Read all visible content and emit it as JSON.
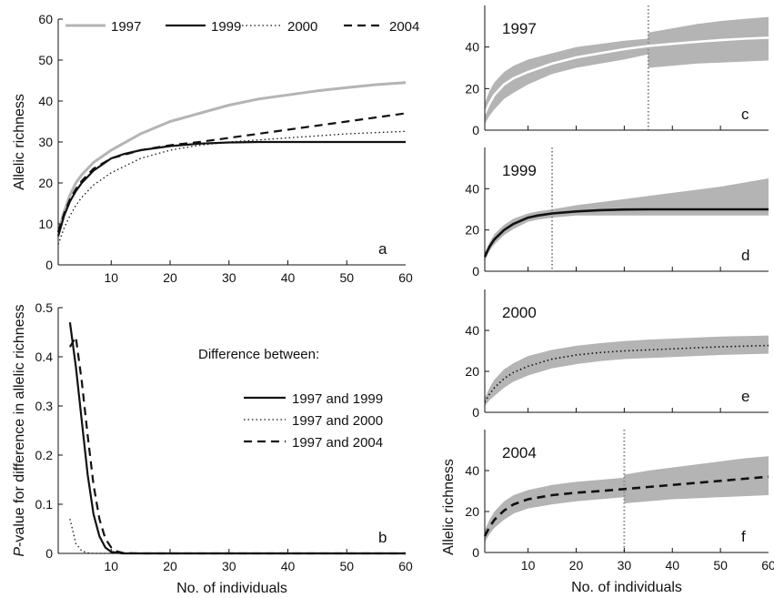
{
  "chart_data": [
    {
      "panel": "a",
      "type": "line",
      "ylabel": "Allelic richness",
      "xlim": [
        1,
        60
      ],
      "ylim": [
        0,
        60
      ],
      "xticks": [
        "10",
        "20",
        "30",
        "40",
        "50",
        "60"
      ],
      "yticks": [
        "0",
        "10",
        "20",
        "30",
        "40",
        "50",
        "60"
      ],
      "legend": {
        "placement": "top",
        "entries": [
          "1997",
          "1999",
          "2000",
          "2004"
        ]
      },
      "series": [
        {
          "name": "1997",
          "style": "solid-gray",
          "color": "#b4b4b4",
          "x": [
            1,
            2,
            3,
            4,
            5,
            7,
            10,
            15,
            20,
            25,
            30,
            35,
            40,
            45,
            50,
            55,
            60
          ],
          "y": [
            8.0,
            13.0,
            17.0,
            20.0,
            22.0,
            25.0,
            28.0,
            32.0,
            35.0,
            37.0,
            39.0,
            40.5,
            41.5,
            42.5,
            43.3,
            44.0,
            44.5
          ]
        },
        {
          "name": "1999",
          "style": "solid-black",
          "color": "#111111",
          "x": [
            1,
            2,
            3,
            4,
            5,
            7,
            10,
            12,
            15,
            20,
            25,
            30,
            35,
            40,
            45,
            50,
            55,
            60
          ],
          "y": [
            7.0,
            12.0,
            15.5,
            18.0,
            20.0,
            23.0,
            26.0,
            27.0,
            28.0,
            29.0,
            29.6,
            29.9,
            30.0,
            30.0,
            30.0,
            30.0,
            30.0,
            30.0
          ]
        },
        {
          "name": "2000",
          "style": "dotted",
          "color": "#111111",
          "x": [
            1,
            2,
            3,
            4,
            5,
            7,
            10,
            15,
            20,
            25,
            30,
            35,
            40,
            45,
            50,
            55,
            60
          ],
          "y": [
            5.0,
            9.0,
            12.0,
            14.5,
            16.5,
            19.5,
            22.5,
            26.0,
            28.0,
            29.2,
            30.0,
            30.5,
            31.0,
            31.5,
            32.0,
            32.3,
            32.6
          ]
        },
        {
          "name": "2004",
          "style": "dashed",
          "color": "#111111",
          "x": [
            1,
            2,
            3,
            4,
            5,
            7,
            10,
            15,
            20,
            25,
            30,
            35,
            40,
            45,
            50,
            55,
            60
          ],
          "y": [
            8.0,
            12.5,
            16.0,
            18.5,
            20.5,
            23.5,
            26.0,
            28.0,
            29.2,
            30.0,
            31.0,
            32.0,
            33.0,
            34.0,
            35.0,
            36.0,
            37.0
          ]
        }
      ]
    },
    {
      "panel": "b",
      "type": "line",
      "xlabel": "No. of individuals",
      "ylabel": "P-value for difference in allelic richness",
      "xlim": [
        1,
        60
      ],
      "ylim": [
        0,
        0.5
      ],
      "xticks": [
        "10",
        "20",
        "30",
        "40",
        "50",
        "60"
      ],
      "yticks": [
        "0",
        "0.1",
        "0.2",
        "0.3",
        "0.4",
        "0.5"
      ],
      "legend_title": "Difference between:",
      "series": [
        {
          "name": "1997 and 1999",
          "style": "solid-black",
          "x": [
            3,
            4,
            5,
            6,
            7,
            8,
            9,
            10,
            12,
            15,
            20,
            60
          ],
          "y": [
            0.47,
            0.38,
            0.27,
            0.16,
            0.08,
            0.035,
            0.012,
            0.003,
            0.0,
            0.0,
            0.0,
            0.0
          ]
        },
        {
          "name": "1997 and 2000",
          "style": "dotted",
          "x": [
            3,
            4,
            5,
            6,
            7,
            8,
            10,
            60
          ],
          "y": [
            0.07,
            0.02,
            0.005,
            0.001,
            0.0,
            0.0,
            0.0,
            0.0
          ]
        },
        {
          "name": "1997 and 2004",
          "style": "dashed",
          "x": [
            3,
            4,
            5,
            6,
            7,
            8,
            9,
            10,
            11,
            12,
            15,
            60
          ],
          "y": [
            0.42,
            0.44,
            0.35,
            0.24,
            0.14,
            0.07,
            0.03,
            0.012,
            0.004,
            0.001,
            0.0,
            0.0
          ]
        }
      ]
    },
    {
      "panel": "c",
      "type": "area",
      "inset_label": "1997",
      "xlim": [
        1,
        60
      ],
      "ylim": [
        0,
        60
      ],
      "xticks": [],
      "yticks": [
        "0",
        "20",
        "40"
      ],
      "vline_x": 35,
      "line": {
        "x": [
          1,
          2,
          3,
          5,
          7,
          10,
          15,
          20,
          25,
          30,
          35,
          40,
          45,
          50,
          55,
          60
        ],
        "y": [
          8,
          13,
          17,
          22,
          25,
          28,
          32,
          35,
          37,
          39,
          40.5,
          41.5,
          42.5,
          43.3,
          44,
          44.5
        ]
      },
      "band_upper": {
        "x": [
          1,
          2,
          3,
          5,
          7,
          10,
          15,
          20,
          25,
          30,
          34.9,
          35,
          40,
          45,
          50,
          55,
          60
        ],
        "y": [
          13,
          19,
          23,
          28,
          31,
          34,
          37,
          40,
          41.5,
          43,
          44,
          47,
          49,
          51,
          52.5,
          53.5,
          54.5
        ]
      },
      "band_lower": {
        "x": [
          1,
          2,
          3,
          5,
          7,
          10,
          15,
          20,
          25,
          30,
          34.9,
          35,
          40,
          45,
          50,
          55,
          60
        ],
        "y": [
          3,
          7,
          10,
          15,
          18,
          22,
          27,
          30,
          32,
          34,
          36.5,
          30,
          31,
          32,
          32.5,
          33,
          33.5
        ]
      }
    },
    {
      "panel": "d",
      "type": "area",
      "inset_label": "1999",
      "xlim": [
        1,
        60
      ],
      "ylim": [
        0,
        60
      ],
      "xticks": [],
      "yticks": [
        "0",
        "20",
        "40"
      ],
      "vline_x": 15,
      "line": {
        "x": [
          1,
          2,
          3,
          5,
          7,
          10,
          12,
          15,
          20,
          25,
          30,
          35,
          40,
          45,
          50,
          55,
          60
        ],
        "y": [
          7,
          12,
          15.5,
          20,
          23,
          26,
          27,
          28,
          29,
          29.6,
          29.9,
          30,
          30,
          30,
          30,
          30,
          30
        ]
      },
      "band_upper": {
        "x": [
          1,
          2,
          3,
          5,
          7,
          10,
          12,
          15,
          20,
          25,
          30,
          35,
          40,
          45,
          50,
          55,
          60
        ],
        "y": [
          9,
          14,
          18,
          22.5,
          25.5,
          28,
          29,
          30,
          32,
          33.5,
          35,
          36.5,
          38,
          39.5,
          41,
          43,
          45
        ]
      },
      "band_lower": {
        "x": [
          1,
          2,
          3,
          5,
          7,
          10,
          12,
          15,
          20,
          25,
          30,
          35,
          40,
          45,
          50,
          55,
          60
        ],
        "y": [
          5,
          10,
          13,
          17.5,
          20.5,
          24,
          25,
          26,
          27,
          27,
          27,
          27,
          27,
          27,
          27,
          27,
          27
        ]
      }
    },
    {
      "panel": "e",
      "type": "area",
      "inset_label": "2000",
      "xlim": [
        1,
        60
      ],
      "ylim": [
        0,
        60
      ],
      "xticks": [],
      "yticks": [
        "0",
        "20",
        "40"
      ],
      "line": {
        "x": [
          1,
          2,
          3,
          5,
          7,
          10,
          15,
          20,
          25,
          30,
          35,
          40,
          45,
          50,
          55,
          60
        ],
        "y": [
          5,
          9,
          12,
          16.5,
          19.5,
          22.5,
          26,
          28,
          29.2,
          30,
          30.5,
          31,
          31.5,
          32,
          32.3,
          32.6
        ]
      },
      "band_upper": {
        "x": [
          1,
          2,
          3,
          5,
          7,
          10,
          15,
          20,
          25,
          30,
          35,
          40,
          45,
          50,
          55,
          60
        ],
        "y": [
          7,
          12,
          16,
          21,
          24,
          27.5,
          30.5,
          32.5,
          33.8,
          34.8,
          35.5,
          36,
          36.5,
          37,
          37.2,
          37.5
        ]
      },
      "band_lower": {
        "x": [
          1,
          2,
          3,
          5,
          7,
          10,
          15,
          20,
          25,
          30,
          35,
          40,
          45,
          50,
          55,
          60
        ],
        "y": [
          3,
          6,
          8,
          12,
          15,
          18,
          21.5,
          23.5,
          25,
          26,
          26.5,
          27,
          27.5,
          28,
          28.3,
          28.6
        ]
      }
    },
    {
      "panel": "f",
      "type": "area",
      "inset_label": "2004",
      "xlabel": "No. of individuals",
      "ylabel": "Allelic richness",
      "xlim": [
        1,
        60
      ],
      "ylim": [
        0,
        60
      ],
      "xticks": [
        "10",
        "20",
        "30",
        "40",
        "50",
        "60"
      ],
      "yticks": [
        "0",
        "20",
        "40"
      ],
      "vline_x": 30,
      "line": {
        "x": [
          1,
          2,
          3,
          5,
          7,
          10,
          15,
          20,
          25,
          30,
          35,
          40,
          45,
          50,
          55,
          60
        ],
        "y": [
          8,
          12.5,
          16,
          20.5,
          23.5,
          26,
          28,
          29.2,
          30,
          31,
          32,
          33,
          34,
          35,
          36,
          37
        ]
      },
      "band_upper": {
        "x": [
          1,
          2,
          3,
          5,
          7,
          10,
          15,
          20,
          25,
          29.9,
          30,
          35,
          40,
          45,
          50,
          55,
          60
        ],
        "y": [
          11,
          16,
          20,
          25,
          28,
          30.5,
          33,
          34.5,
          35.5,
          36.5,
          38,
          40,
          41.5,
          43,
          44.5,
          46,
          47
        ]
      },
      "band_lower": {
        "x": [
          1,
          2,
          3,
          5,
          7,
          10,
          15,
          20,
          25,
          29.9,
          30,
          35,
          40,
          45,
          50,
          55,
          60
        ],
        "y": [
          5,
          9,
          12,
          16,
          19,
          21.5,
          23.5,
          25,
          26,
          27,
          24,
          25,
          26,
          26.5,
          27,
          27.5,
          28
        ]
      }
    }
  ]
}
